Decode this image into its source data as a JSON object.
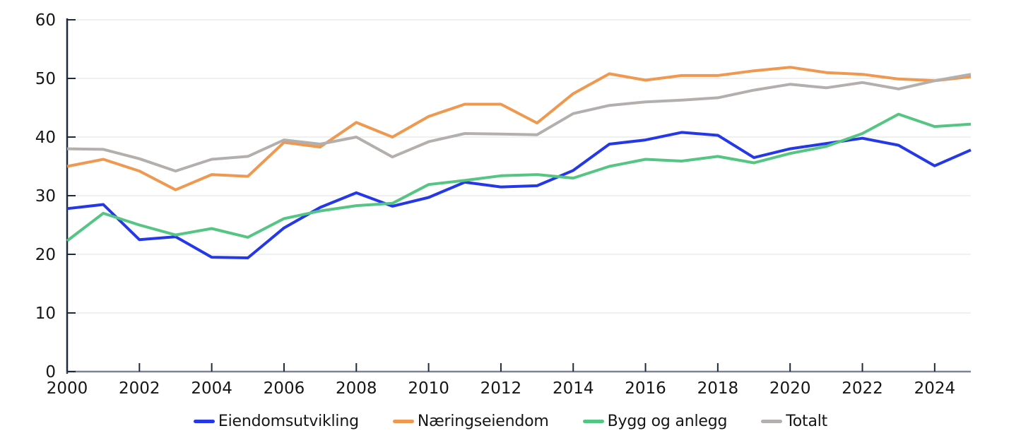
{
  "chart_data": {
    "type": "line",
    "title": "",
    "xlabel": "",
    "ylabel": "",
    "grid": true,
    "legend_position": "bottom",
    "ylim": [
      0,
      60
    ],
    "y_ticks": [
      0,
      10,
      20,
      30,
      40,
      50,
      60
    ],
    "x": [
      2000,
      2001,
      2002,
      2003,
      2004,
      2005,
      2006,
      2007,
      2008,
      2009,
      2010,
      2011,
      2012,
      2013,
      2014,
      2015,
      2016,
      2017,
      2018,
      2019,
      2020,
      2021,
      2022,
      2023,
      2024,
      2025
    ],
    "x_tick_labels": [
      "2000",
      "2002",
      "2004",
      "2006",
      "2008",
      "2010",
      "2012",
      "2014",
      "2016",
      "2018",
      "2020",
      "2022",
      "2024"
    ],
    "series": [
      {
        "name": "Eiendomsutvikling",
        "slug": "eiendomsutvikling",
        "color": "#2438e8",
        "values": [
          27.8,
          28.5,
          22.5,
          23.0,
          19.5,
          19.4,
          24.5,
          28.0,
          30.5,
          28.2,
          29.7,
          32.3,
          31.5,
          31.7,
          34.3,
          38.8,
          39.5,
          40.8,
          40.3,
          36.5,
          38.0,
          38.9,
          39.8,
          38.6,
          35.1,
          37.8
        ]
      },
      {
        "name": "Næringseiendom",
        "slug": "naeringseiendom",
        "color": "#ef9850",
        "values": [
          35.0,
          36.2,
          34.2,
          31.0,
          33.6,
          33.3,
          39.1,
          38.3,
          42.5,
          40.0,
          43.5,
          45.6,
          45.6,
          42.4,
          47.4,
          50.8,
          49.7,
          50.5,
          50.5,
          51.3,
          51.9,
          51.0,
          50.7,
          49.9,
          49.6,
          50.3
        ]
      },
      {
        "name": "Bygg og anlegg",
        "slug": "bygg-og-anlegg",
        "color": "#55c583",
        "values": [
          22.3,
          27.0,
          25.0,
          23.3,
          24.4,
          22.9,
          26.1,
          27.4,
          28.3,
          28.7,
          31.9,
          32.6,
          33.4,
          33.6,
          33.0,
          35.0,
          36.2,
          35.9,
          36.7,
          35.6,
          37.2,
          38.4,
          40.6,
          43.9,
          41.8,
          42.2
        ]
      },
      {
        "name": "Totalt",
        "slug": "totalt",
        "color": "#b2afac",
        "values": [
          38.0,
          37.9,
          36.3,
          34.2,
          36.2,
          36.7,
          39.5,
          38.8,
          40.0,
          36.6,
          39.2,
          40.6,
          40.5,
          40.4,
          44.0,
          45.4,
          46.0,
          46.3,
          46.7,
          48.0,
          49.0,
          48.4,
          49.3,
          48.2,
          49.6,
          50.7
        ]
      }
    ],
    "style": {
      "line_width": 4,
      "grid_color": "#e7e7e7",
      "y_axis_color": "#1f2a3c",
      "x_axis_color": "#7b8490",
      "tick_color": "#1f2a3c",
      "label_color": "#161616",
      "tick_font_size": 23
    }
  }
}
